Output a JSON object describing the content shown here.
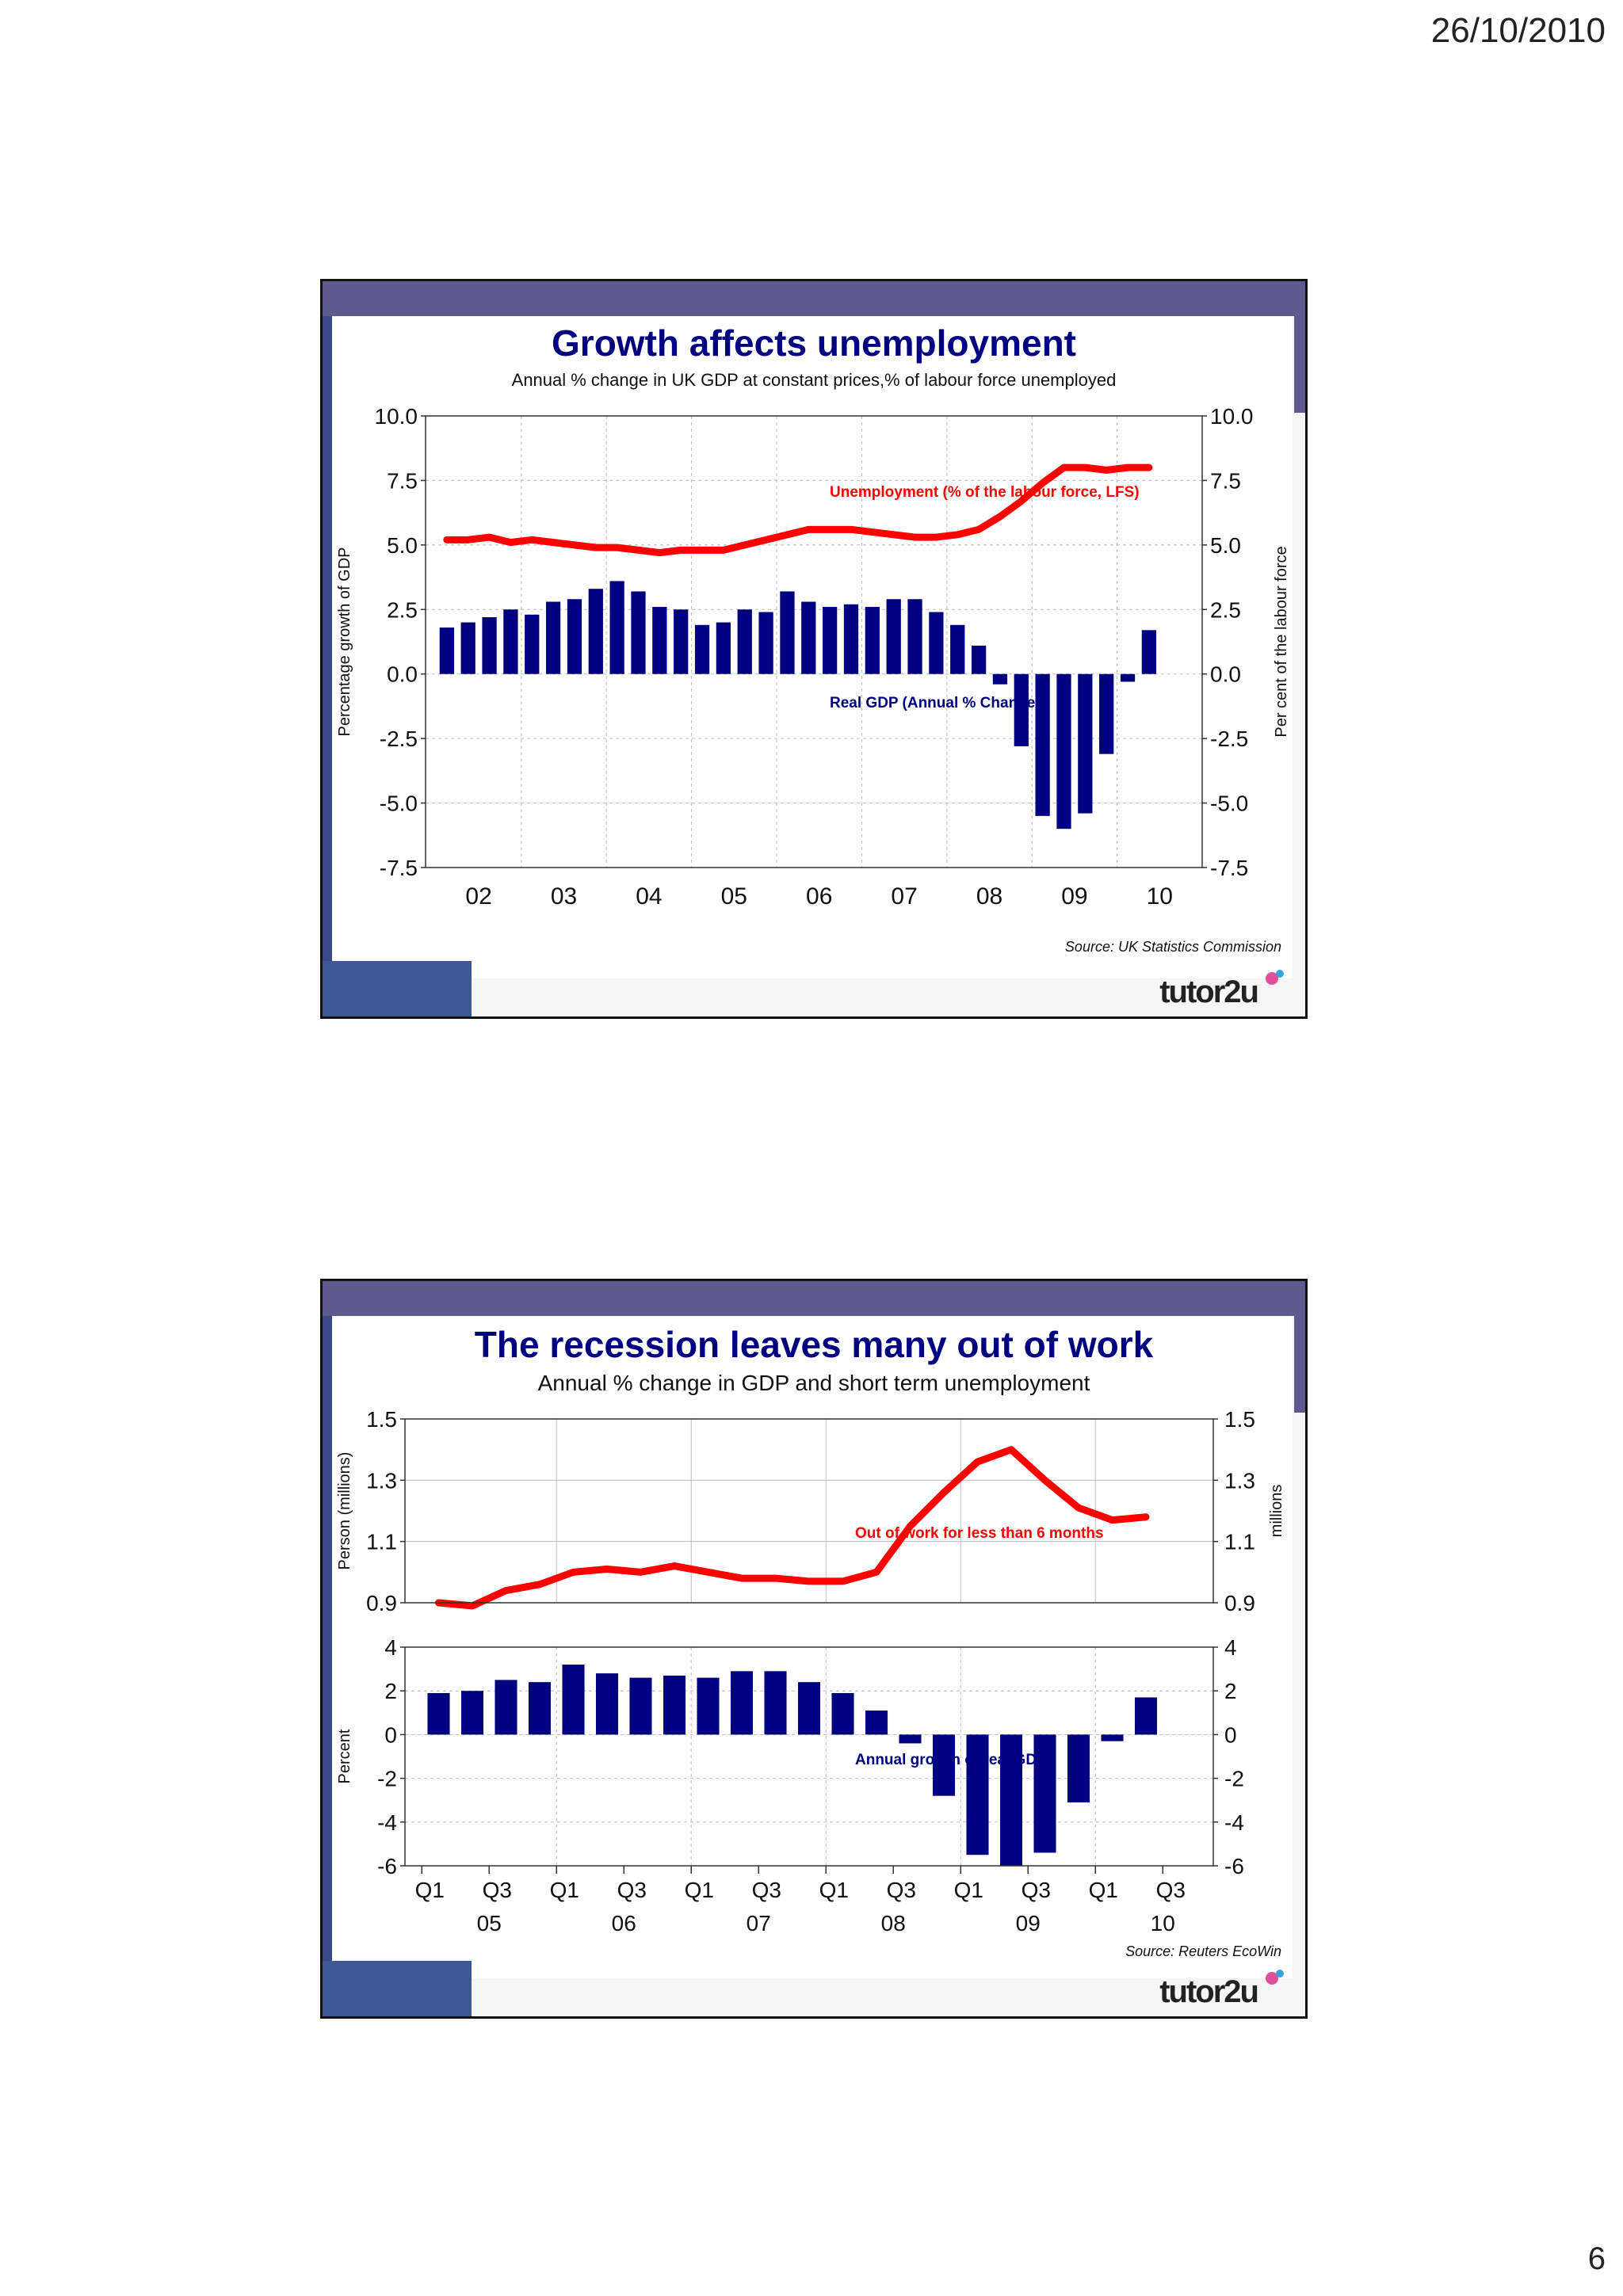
{
  "page": {
    "date": "26/10/2010",
    "page_number": "6"
  },
  "colors": {
    "header_band": "#5f5a8e",
    "bar": "#000080",
    "line": "#ff0000",
    "title": "#000080"
  },
  "slide1": {
    "title": "Growth affects unemployment",
    "subtitle": "Annual % change in UK GDP at constant prices,% of labour force unemployed",
    "line_label": "Unemployment (% of the labour force, LFS)",
    "bar_label": "Real GDP (Annual % Change)",
    "source": "Source: UK Statistics Commission",
    "logo": "tutor2u"
  },
  "slide2": {
    "title": "The recession leaves many out of work",
    "subtitle": "Annual % change in GDP and short term unemployment",
    "line_label": "Out of work for less than 6 months",
    "bar_label": "Annual growth of real GDP",
    "source": "Source: Reuters EcoWin",
    "logo": "tutor2u"
  },
  "chart_data": [
    {
      "type": "bar",
      "title": "Growth affects unemployment",
      "subtitle": "Annual % change in UK GDP at constant prices,% of labour force unemployed",
      "ylabel_left": "Percentage growth of GDP",
      "ylabel_right": "Per cent of the labour force",
      "left_ticks": [
        "10.0",
        "7.5",
        "5.0",
        "2.5",
        "0.0",
        "-2.5",
        "-5.0",
        "-7.5"
      ],
      "right_ticks": [
        "10.0",
        "7.5",
        "5.0",
        "2.5",
        "0.0",
        "-2.5",
        "-5.0",
        "-7.5"
      ],
      "x_ticks": [
        "02",
        "03",
        "04",
        "05",
        "06",
        "07",
        "08",
        "09",
        "10"
      ],
      "ylim": [
        -7.5,
        10
      ],
      "grid": true,
      "series": [
        {
          "name": "Real GDP (Annual % Change)",
          "type": "bar",
          "x": [
            "2002 Q1",
            "2002 Q2",
            "2002 Q3",
            "2002 Q4",
            "2003 Q1",
            "2003 Q2",
            "2003 Q3",
            "2003 Q4",
            "2004 Q1",
            "2004 Q2",
            "2004 Q3",
            "2004 Q4",
            "2005 Q1",
            "2005 Q2",
            "2005 Q3",
            "2005 Q4",
            "2006 Q1",
            "2006 Q2",
            "2006 Q3",
            "2006 Q4",
            "2007 Q1",
            "2007 Q2",
            "2007 Q3",
            "2007 Q4",
            "2008 Q1",
            "2008 Q2",
            "2008 Q3",
            "2008 Q4",
            "2009 Q1",
            "2009 Q2",
            "2009 Q3",
            "2009 Q4",
            "2010 Q1",
            "2010 Q2"
          ],
          "values": [
            1.8,
            2.0,
            2.2,
            2.5,
            2.3,
            2.8,
            2.9,
            3.3,
            3.6,
            3.2,
            2.6,
            2.5,
            1.9,
            2.0,
            2.5,
            2.4,
            3.2,
            2.8,
            2.6,
            2.7,
            2.6,
            2.9,
            2.9,
            2.4,
            1.9,
            1.1,
            -0.4,
            -2.8,
            -5.5,
            -6.0,
            -5.4,
            -3.1,
            -0.3,
            1.7
          ]
        },
        {
          "name": "Unemployment (% of the labour force, LFS)",
          "type": "line",
          "x": [
            "2002 Q1",
            "2002 Q2",
            "2002 Q3",
            "2002 Q4",
            "2003 Q1",
            "2003 Q2",
            "2003 Q3",
            "2003 Q4",
            "2004 Q1",
            "2004 Q2",
            "2004 Q3",
            "2004 Q4",
            "2005 Q1",
            "2005 Q2",
            "2005 Q3",
            "2005 Q4",
            "2006 Q1",
            "2006 Q2",
            "2006 Q3",
            "2006 Q4",
            "2007 Q1",
            "2007 Q2",
            "2007 Q3",
            "2007 Q4",
            "2008 Q1",
            "2008 Q2",
            "2008 Q3",
            "2008 Q4",
            "2009 Q1",
            "2009 Q2",
            "2009 Q3",
            "2009 Q4",
            "2010 Q1",
            "2010 Q2"
          ],
          "values": [
            5.2,
            5.2,
            5.3,
            5.1,
            5.2,
            5.1,
            5.0,
            4.9,
            4.9,
            4.8,
            4.7,
            4.8,
            4.8,
            4.8,
            5.0,
            5.2,
            5.4,
            5.6,
            5.6,
            5.6,
            5.5,
            5.4,
            5.3,
            5.3,
            5.4,
            5.6,
            6.1,
            6.7,
            7.4,
            8.0,
            8.0,
            7.9,
            8.0,
            8.0
          ]
        }
      ]
    },
    {
      "type": "bar",
      "title": "The recession leaves many out of work",
      "subtitle": "Annual % change in GDP and short term unemployment",
      "panels": [
        {
          "series": [
            {
              "name": "Out of work for less than 6 months",
              "type": "line",
              "x": [
                "2005 Q1",
                "2005 Q2",
                "2005 Q3",
                "2005 Q4",
                "2006 Q1",
                "2006 Q2",
                "2006 Q3",
                "2006 Q4",
                "2007 Q1",
                "2007 Q2",
                "2007 Q3",
                "2007 Q4",
                "2008 Q1",
                "2008 Q2",
                "2008 Q3",
                "2008 Q4",
                "2009 Q1",
                "2009 Q2",
                "2009 Q3",
                "2009 Q4",
                "2010 Q1",
                "2010 Q2"
              ],
              "values": [
                0.9,
                0.89,
                0.94,
                0.96,
                1.0,
                1.01,
                1.0,
                1.02,
                1.0,
                0.98,
                0.98,
                0.97,
                0.97,
                1.0,
                1.15,
                1.26,
                1.36,
                1.4,
                1.3,
                1.21,
                1.17,
                1.18
              ]
            }
          ],
          "ylabel_left": "Person (millions)",
          "ylabel_right": "millions",
          "left_ticks": [
            "1.5",
            "1.3",
            "1.1",
            "0.9"
          ],
          "right_ticks": [
            "1.5",
            "1.3",
            "1.1",
            "0.9"
          ],
          "ylim": [
            0.9,
            1.5
          ]
        },
        {
          "series": [
            {
              "name": "Annual growth of real GDP",
              "type": "bar",
              "x": [
                "2005 Q1",
                "2005 Q2",
                "2005 Q3",
                "2005 Q4",
                "2006 Q1",
                "2006 Q2",
                "2006 Q3",
                "2006 Q4",
                "2007 Q1",
                "2007 Q2",
                "2007 Q3",
                "2007 Q4",
                "2008 Q1",
                "2008 Q2",
                "2008 Q3",
                "2008 Q4",
                "2009 Q1",
                "2009 Q2",
                "2009 Q3",
                "2009 Q4",
                "2010 Q1",
                "2010 Q2"
              ],
              "values": [
                1.9,
                2.0,
                2.5,
                2.4,
                3.2,
                2.8,
                2.6,
                2.7,
                2.6,
                2.9,
                2.9,
                2.4,
                1.9,
                1.1,
                -0.4,
                -2.8,
                -5.5,
                -6.0,
                -5.4,
                -3.1,
                -0.3,
                1.7
              ]
            }
          ],
          "ylabel_left": "Percent",
          "left_ticks": [
            "4",
            "2",
            "0",
            "-2",
            "-4",
            "-6"
          ],
          "right_ticks": [
            "4",
            "2",
            "0",
            "-2",
            "-4",
            "-6"
          ],
          "ylim": [
            -6,
            4
          ]
        }
      ],
      "x_ticks": [
        "Q1",
        "Q3",
        "Q1",
        "Q3",
        "Q1",
        "Q3",
        "Q1",
        "Q3",
        "Q1",
        "Q3",
        "Q1",
        "Q3"
      ],
      "x_year_ticks": [
        "05",
        "06",
        "07",
        "08",
        "09",
        "10"
      ],
      "grid": true
    }
  ]
}
